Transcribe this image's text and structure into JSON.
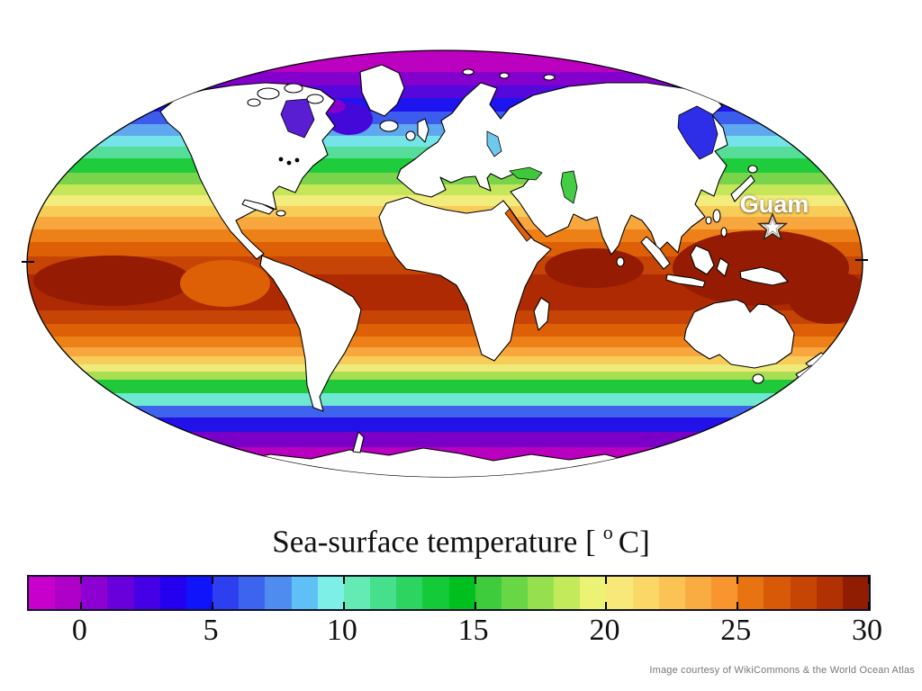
{
  "title": {
    "prefix": "Sea-surface temperature [",
    "degree_symbol": "o",
    "suffix": "C]"
  },
  "map": {
    "marker": {
      "label": "Guam",
      "symbol": "star",
      "label_color": "#FFFFFF"
    }
  },
  "attribution": "Image courtesy of WikiCommons & the World Ocean Atlas",
  "chart_data": {
    "type": "heatmap",
    "subtype": "world-map-sea-surface-temperature",
    "title": "Sea-surface temperature [ °C]",
    "units": "°C",
    "projection": "elliptical (Mollweide-style) world map, oceans colored by temperature, land white",
    "legend_position": "bottom",
    "colorbar": {
      "min": -2,
      "max": 30,
      "segment_step": 1,
      "tick_labels": [
        0,
        5,
        10,
        15,
        20,
        25,
        30
      ],
      "colors": [
        "#C800CC",
        "#AF00C8",
        "#8C00D2",
        "#6900DC",
        "#4600E6",
        "#2300F0",
        "#0F14FA",
        "#2D3FEF",
        "#3C64EF",
        "#4F8CF0",
        "#5FC0F6",
        "#7EEFE6",
        "#64EBB4",
        "#46E08C",
        "#2DD560",
        "#14CA38",
        "#00C020",
        "#3FCC3C",
        "#69D646",
        "#96E050",
        "#C3EA5A",
        "#ECF273",
        "#F8E87A",
        "#FBD768",
        "#FBC254",
        "#F9AC41",
        "#F8952E",
        "#E87311",
        "#D85A08",
        "#C64504",
        "#B23102",
        "#901C02"
      ]
    },
    "gradient_summary": {
      "poles": "magenta / purple (below 0 °C)",
      "mid_latitudes": "blue → cyan → green → yellow",
      "tropics": "orange → dark red (up to ~30 °C), warmest in western Pacific warm pool"
    },
    "markers": [
      {
        "label": "Guam",
        "symbol": "star",
        "location": "western North Pacific"
      }
    ],
    "attribution": "Image courtesy of WikiCommons & the World Ocean Atlas"
  }
}
